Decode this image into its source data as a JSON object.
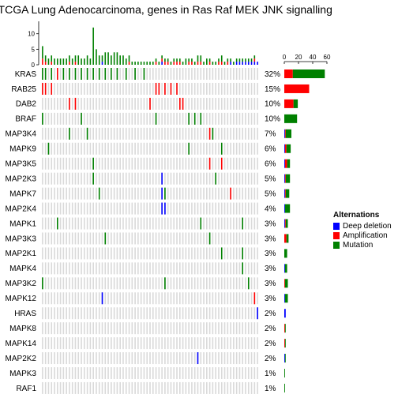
{
  "title": "nt for TCGA Lung Adenocarcinoma, genes in Ras Raf MEK JNK signalling",
  "colors": {
    "deep_deletion": "#0000ff",
    "amplification": "#ff0000",
    "mutation": "#008000",
    "background": "#d9d9d9"
  },
  "legend": {
    "title": "Alternations",
    "items": [
      {
        "label": "Deep deletion",
        "color": "#0000ff"
      },
      {
        "label": "Amplification",
        "color": "#ff0000"
      },
      {
        "label": "Mutation",
        "color": "#008000"
      }
    ]
  },
  "chart_data": [
    {
      "type": "oncoprint",
      "genes": [
        "KRAS",
        "RAB25",
        "DAB2",
        "BRAF",
        "MAP3K4",
        "MAPK9",
        "MAP3K5",
        "MAP2K3",
        "MAPK7",
        "MAP2K4",
        "MAPK1",
        "MAP3K3",
        "MAP2K1",
        "MAPK4",
        "MAP3K2",
        "MAPK12",
        "HRAS",
        "MAPK8",
        "MAPK14",
        "MAP2K2",
        "MAPK3",
        "RAF1"
      ],
      "percentages": [
        "32%",
        "15%",
        "10%",
        "10%",
        "7%",
        "6%",
        "6%",
        "5%",
        "5%",
        "4%",
        "3%",
        "3%",
        "3%",
        "3%",
        "3%",
        "3%",
        "2%",
        "2%",
        "2%",
        "2%",
        "1%",
        "1%"
      ],
      "sample_columns": 73,
      "alterations": [
        {
          "gene": "KRAS",
          "sample": 0,
          "type": "mutation"
        },
        {
          "gene": "KRAS",
          "sample": 1,
          "type": "mutation"
        },
        {
          "gene": "KRAS",
          "sample": 3,
          "type": "mutation"
        },
        {
          "gene": "KRAS",
          "sample": 5,
          "type": "amplification"
        },
        {
          "gene": "KRAS",
          "sample": 7,
          "type": "mutation"
        },
        {
          "gene": "KRAS",
          "sample": 9,
          "type": "mutation"
        },
        {
          "gene": "KRAS",
          "sample": 11,
          "type": "mutation"
        },
        {
          "gene": "KRAS",
          "sample": 13,
          "type": "mutation"
        },
        {
          "gene": "KRAS",
          "sample": 15,
          "type": "mutation"
        },
        {
          "gene": "KRAS",
          "sample": 17,
          "type": "mutation"
        },
        {
          "gene": "KRAS",
          "sample": 19,
          "type": "mutation"
        },
        {
          "gene": "KRAS",
          "sample": 21,
          "type": "mutation"
        },
        {
          "gene": "KRAS",
          "sample": 23,
          "type": "mutation"
        },
        {
          "gene": "KRAS",
          "sample": 25,
          "type": "mutation"
        },
        {
          "gene": "KRAS",
          "sample": 28,
          "type": "mutation"
        },
        {
          "gene": "KRAS",
          "sample": 31,
          "type": "mutation"
        },
        {
          "gene": "KRAS",
          "sample": 34,
          "type": "mutation"
        },
        {
          "gene": "RAB25",
          "sample": 0,
          "type": "amplification"
        },
        {
          "gene": "RAB25",
          "sample": 1,
          "type": "amplification"
        },
        {
          "gene": "RAB25",
          "sample": 3,
          "type": "amplification"
        },
        {
          "gene": "RAB25",
          "sample": 38,
          "type": "amplification"
        },
        {
          "gene": "RAB25",
          "sample": 39,
          "type": "amplification"
        },
        {
          "gene": "RAB25",
          "sample": 41,
          "type": "amplification"
        },
        {
          "gene": "RAB25",
          "sample": 43,
          "type": "amplification"
        },
        {
          "gene": "RAB25",
          "sample": 45,
          "type": "amplification"
        },
        {
          "gene": "DAB2",
          "sample": 9,
          "type": "amplification"
        },
        {
          "gene": "DAB2",
          "sample": 11,
          "type": "amplification"
        },
        {
          "gene": "DAB2",
          "sample": 36,
          "type": "amplification"
        },
        {
          "gene": "DAB2",
          "sample": 46,
          "type": "amplification"
        },
        {
          "gene": "DAB2",
          "sample": 47,
          "type": "amplification"
        },
        {
          "gene": "BRAF",
          "sample": 0,
          "type": "mutation"
        },
        {
          "gene": "BRAF",
          "sample": 13,
          "type": "mutation"
        },
        {
          "gene": "BRAF",
          "sample": 38,
          "type": "mutation"
        },
        {
          "gene": "BRAF",
          "sample": 49,
          "type": "mutation"
        },
        {
          "gene": "BRAF",
          "sample": 51,
          "type": "mutation"
        },
        {
          "gene": "BRAF",
          "sample": 53,
          "type": "mutation"
        },
        {
          "gene": "MAP3K4",
          "sample": 9,
          "type": "mutation"
        },
        {
          "gene": "MAP3K4",
          "sample": 15,
          "type": "mutation"
        },
        {
          "gene": "MAP3K4",
          "sample": 56,
          "type": "amplification"
        },
        {
          "gene": "MAP3K4",
          "sample": 57,
          "type": "mutation"
        },
        {
          "gene": "MAPK9",
          "sample": 2,
          "type": "mutation"
        },
        {
          "gene": "MAPK9",
          "sample": 49,
          "type": "mutation"
        },
        {
          "gene": "MAPK9",
          "sample": 60,
          "type": "mutation"
        },
        {
          "gene": "MAP3K5",
          "sample": 17,
          "type": "mutation"
        },
        {
          "gene": "MAP3K5",
          "sample": 56,
          "type": "amplification"
        },
        {
          "gene": "MAP3K5",
          "sample": 60,
          "type": "amplification"
        },
        {
          "gene": "MAP2K3",
          "sample": 17,
          "type": "mutation"
        },
        {
          "gene": "MAP2K3",
          "sample": 40,
          "type": "deep_deletion"
        },
        {
          "gene": "MAP2K3",
          "sample": 58,
          "type": "mutation"
        },
        {
          "gene": "MAPK7",
          "sample": 19,
          "type": "mutation"
        },
        {
          "gene": "MAPK7",
          "sample": 40,
          "type": "deep_deletion"
        },
        {
          "gene": "MAPK7",
          "sample": 41,
          "type": "mutation"
        },
        {
          "gene": "MAPK7",
          "sample": 63,
          "type": "amplification"
        },
        {
          "gene": "MAP2K4",
          "sample": 40,
          "type": "deep_deletion"
        },
        {
          "gene": "MAP2K4",
          "sample": 41,
          "type": "deep_deletion"
        },
        {
          "gene": "MAPK1",
          "sample": 5,
          "type": "mutation"
        },
        {
          "gene": "MAPK1",
          "sample": 53,
          "type": "mutation"
        },
        {
          "gene": "MAPK1",
          "sample": 67,
          "type": "mutation"
        },
        {
          "gene": "MAP3K3",
          "sample": 21,
          "type": "mutation"
        },
        {
          "gene": "MAP3K3",
          "sample": 56,
          "type": "mutation"
        },
        {
          "gene": "MAP2K1",
          "sample": 60,
          "type": "mutation"
        },
        {
          "gene": "MAP2K1",
          "sample": 67,
          "type": "mutation"
        },
        {
          "gene": "MAPK4",
          "sample": 67,
          "type": "mutation"
        },
        {
          "gene": "MAP3K2",
          "sample": 0,
          "type": "mutation"
        },
        {
          "gene": "MAP3K2",
          "sample": 41,
          "type": "mutation"
        },
        {
          "gene": "MAP3K2",
          "sample": 69,
          "type": "mutation"
        },
        {
          "gene": "MAPK12",
          "sample": 20,
          "type": "deep_deletion"
        },
        {
          "gene": "MAPK12",
          "sample": 71,
          "type": "amplification"
        },
        {
          "gene": "HRAS",
          "sample": 72,
          "type": "deep_deletion"
        },
        {
          "gene": "MAP2K2",
          "sample": 52,
          "type": "deep_deletion"
        }
      ]
    },
    {
      "type": "bar",
      "series": [
        {
          "name": "Deep deletion",
          "color": "#0000ff",
          "values": [
            0,
            0,
            0,
            0,
            1,
            1,
            1,
            1,
            1,
            1,
            1,
            0,
            0,
            1,
            0,
            1,
            2,
            0,
            0,
            1,
            0,
            0
          ]
        },
        {
          "name": "Amplification",
          "color": "#ff0000",
          "values": [
            12,
            35,
            13,
            0,
            1,
            2,
            3,
            1,
            1,
            0,
            1,
            3,
            0,
            0,
            1,
            0,
            0,
            1,
            1,
            0,
            0,
            0
          ]
        },
        {
          "name": "Mutation",
          "color": "#008000",
          "values": [
            45,
            0,
            6,
            18,
            8,
            6,
            4,
            6,
            5,
            7,
            3,
            3,
            4,
            3,
            4,
            4,
            0,
            1,
            1,
            1,
            1,
            1
          ]
        }
      ],
      "xticks": [
        "0",
        "20",
        "40",
        "60"
      ],
      "xlim": [
        0,
        60
      ]
    },
    {
      "type": "bar",
      "series": [
        {
          "name": "Deep deletion",
          "color": "#0000ff",
          "values": [
            0,
            0,
            0,
            0,
            0,
            0,
            0,
            0,
            0,
            0,
            0,
            0,
            0,
            0,
            0,
            0,
            0,
            0,
            0,
            0,
            1,
            0,
            0,
            0,
            0,
            0,
            0,
            0,
            0,
            0,
            0,
            0,
            0,
            0,
            0,
            0,
            0,
            0,
            0,
            0,
            1,
            0,
            0,
            0,
            0,
            0,
            0,
            0,
            0,
            0,
            0,
            0,
            0,
            0,
            0,
            0,
            0,
            0,
            0,
            0,
            0,
            0,
            0,
            1,
            0,
            1,
            1,
            1,
            1,
            1,
            1,
            1,
            1
          ]
        },
        {
          "name": "Amplification",
          "color": "#ff0000",
          "values": [
            2,
            1,
            0,
            1,
            0,
            0,
            0,
            0,
            0,
            1,
            0,
            1,
            0,
            0,
            0,
            0,
            0,
            0,
            0,
            0,
            0,
            0,
            0,
            0,
            0,
            0,
            0,
            0,
            0,
            1,
            0,
            0,
            0,
            0,
            0,
            0,
            0,
            0,
            1,
            0,
            1,
            1,
            1,
            0,
            1,
            1,
            1,
            0,
            0,
            1,
            1,
            0,
            1,
            1,
            0,
            0,
            1,
            0,
            0,
            1,
            1,
            0,
            1,
            0,
            0,
            0,
            0,
            0,
            0,
            0,
            0,
            1,
            0
          ]
        },
        {
          "name": "Mutation",
          "color": "#008000",
          "values": [
            4,
            2,
            2,
            2,
            2,
            2,
            2,
            2,
            2,
            2,
            2,
            2,
            3,
            2,
            2,
            3,
            2,
            12,
            5,
            3,
            2,
            4,
            4,
            3,
            4,
            4,
            3,
            3,
            2,
            2,
            1,
            1,
            1,
            1,
            1,
            1,
            1,
            1,
            1,
            1,
            1,
            1,
            1,
            1,
            1,
            1,
            1,
            1,
            2,
            1,
            1,
            1,
            2,
            2,
            1,
            2,
            1,
            1,
            1,
            1,
            2,
            1,
            1,
            1,
            1,
            1,
            1,
            1,
            1,
            1,
            1,
            1,
            0
          ]
        }
      ],
      "yticks": [
        "0",
        "5",
        "10"
      ],
      "ylim": [
        0,
        14
      ]
    }
  ]
}
